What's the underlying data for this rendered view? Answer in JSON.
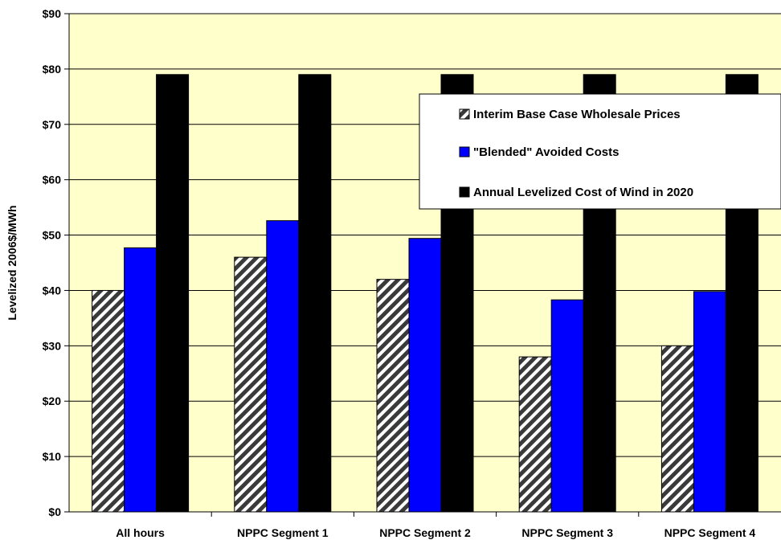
{
  "chart_data": {
    "type": "bar",
    "ylabel": "Levelized 2006$/MWh",
    "ylim": [
      0,
      90
    ],
    "yticks": [
      0,
      10,
      20,
      30,
      40,
      50,
      60,
      70,
      80,
      90
    ],
    "ytick_labels": [
      "$0",
      "$10",
      "$20",
      "$30",
      "$40",
      "$50",
      "$60",
      "$70",
      "$80",
      "$90"
    ],
    "grid": true,
    "legend_position": "top-right",
    "categories": [
      "All hours",
      "NPPC Segment 1",
      "NPPC Segment 2",
      "NPPC Segment 3",
      "NPPC Segment 4"
    ],
    "series": [
      {
        "name": "Interim Base Case Wholesale Prices",
        "values": [
          40,
          46,
          42,
          28,
          30
        ],
        "color": "#ffffff",
        "pattern": "diagonal-hatch"
      },
      {
        "name": "\"Blended\" Avoided Costs",
        "values": [
          47.7,
          52.6,
          49.4,
          38.3,
          39.8
        ],
        "color": "#0000ff"
      },
      {
        "name": "Annual Levelized Cost of Wind in 2020",
        "values": [
          79,
          79,
          79,
          79,
          79
        ],
        "color": "#000000"
      }
    ],
    "plot_background": "#ffffcc"
  }
}
